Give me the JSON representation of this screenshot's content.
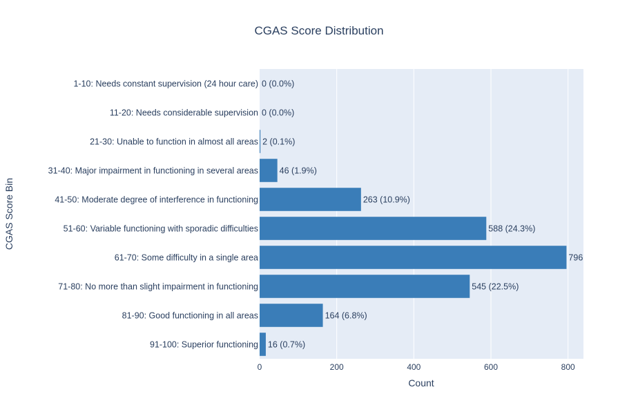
{
  "colors": {
    "plot_background": "#e5ecf6",
    "bar": "#3a7db8",
    "grid": "#ffffff",
    "text": "#2a3f5f"
  },
  "chart_data": {
    "type": "bar",
    "orientation": "horizontal",
    "title": "CGAS Score Distribution",
    "xlabel": "Count",
    "ylabel": "CGAS Score Bin",
    "xlim": [
      0,
      840
    ],
    "x_ticks": [
      0,
      200,
      400,
      600,
      800
    ],
    "grid": true,
    "legend": "none",
    "categories": [
      "1-10: Needs constant supervision (24 hour care)",
      "11-20: Needs considerable supervision",
      "21-30: Unable to function in almost all areas",
      "31-40: Major impairment in functioning in several areas",
      "41-50: Moderate degree of interference in functioning",
      "51-60: Variable functioning with sporadic difficulties",
      "61-70: Some difficulty in a single area",
      "71-80: No more than slight impairment in functioning",
      "81-90: Good functioning in all areas",
      "91-100: Superior functioning"
    ],
    "values": [
      0,
      0,
      2,
      46,
      263,
      588,
      796,
      545,
      164,
      16
    ],
    "data_labels": [
      "0 (0.0%)",
      "0 (0.0%)",
      "2 (0.1%)",
      "46 (1.9%)",
      "263 (10.9%)",
      "588 (24.3%)",
      "796",
      "545 (22.5%)",
      "164 (6.8%)",
      "16 (0.7%)"
    ]
  }
}
